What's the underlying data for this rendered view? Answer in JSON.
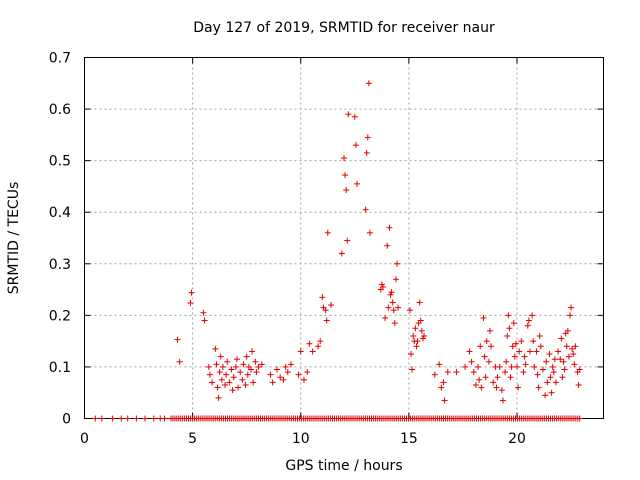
{
  "chart_data": {
    "type": "scatter",
    "title": "Day 127 of 2019, SRMTID for receiver naur",
    "xlabel": "GPS time / hours",
    "ylabel": "SRMTID / TECUs",
    "xlim": [
      0,
      24
    ],
    "ylim": [
      0,
      0.7
    ],
    "x_ticks": [
      0,
      5,
      10,
      15,
      20
    ],
    "y_ticks": [
      0,
      0.1,
      0.2,
      0.3,
      0.4,
      0.5,
      0.6,
      0.7
    ],
    "y_tick_labels": [
      "0",
      "0.1",
      "0.2",
      "0.3",
      "0.4",
      "0.5",
      "0.6",
      "0.7"
    ],
    "grid": true,
    "marker": "+",
    "series": [
      {
        "name": "SRMTID",
        "color": "#e00000",
        "points": [
          [
            0.5,
            0
          ],
          [
            0.8,
            0
          ],
          [
            1.3,
            0
          ],
          [
            1.7,
            0
          ],
          [
            2.0,
            0
          ],
          [
            2.4,
            0
          ],
          [
            2.8,
            0
          ],
          [
            3.2,
            0
          ],
          [
            3.5,
            0
          ],
          [
            3.7,
            0
          ],
          [
            4.3,
            0.153
          ],
          [
            4.4,
            0.11
          ],
          [
            4.9,
            0.224
          ],
          [
            4.95,
            0.244
          ],
          [
            5.5,
            0.205
          ],
          [
            5.55,
            0.19
          ],
          [
            5.75,
            0.1
          ],
          [
            5.8,
            0.085
          ],
          [
            5.9,
            0.07
          ],
          [
            6.05,
            0.135
          ],
          [
            6.1,
            0.105
          ],
          [
            6.15,
            0.06
          ],
          [
            6.2,
            0.04
          ],
          [
            6.25,
            0.09
          ],
          [
            6.3,
            0.12
          ],
          [
            6.35,
            0.075
          ],
          [
            6.4,
            0.1
          ],
          [
            6.5,
            0.065
          ],
          [
            6.55,
            0.085
          ],
          [
            6.6,
            0.11
          ],
          [
            6.7,
            0.07
          ],
          [
            6.8,
            0.095
          ],
          [
            6.85,
            0.055
          ],
          [
            6.9,
            0.08
          ],
          [
            7.0,
            0.1
          ],
          [
            7.05,
            0.115
          ],
          [
            7.1,
            0.06
          ],
          [
            7.2,
            0.09
          ],
          [
            7.3,
            0.075
          ],
          [
            7.35,
            0.105
          ],
          [
            7.45,
            0.065
          ],
          [
            7.5,
            0.12
          ],
          [
            7.55,
            0.085
          ],
          [
            7.6,
            0.1
          ],
          [
            7.7,
            0.095
          ],
          [
            7.75,
            0.13
          ],
          [
            7.8,
            0.07
          ],
          [
            7.9,
            0.11
          ],
          [
            7.95,
            0.09
          ],
          [
            8.05,
            0.1
          ],
          [
            8.2,
            0.105
          ],
          [
            8.6,
            0.085
          ],
          [
            8.7,
            0.07
          ],
          [
            8.9,
            0.095
          ],
          [
            9.05,
            0.08
          ],
          [
            9.2,
            0.075
          ],
          [
            9.3,
            0.1
          ],
          [
            9.4,
            0.09
          ],
          [
            9.55,
            0.105
          ],
          [
            9.9,
            0.085
          ],
          [
            10.0,
            0.13
          ],
          [
            10.15,
            0.075
          ],
          [
            10.3,
            0.09
          ],
          [
            10.4,
            0.145
          ],
          [
            10.55,
            0.13
          ],
          [
            10.8,
            0.14
          ],
          [
            10.9,
            0.15
          ],
          [
            11.0,
            0.235
          ],
          [
            11.05,
            0.215
          ],
          [
            11.15,
            0.21
          ],
          [
            11.2,
            0.19
          ],
          [
            11.25,
            0.36
          ],
          [
            11.4,
            0.22
          ],
          [
            11.9,
            0.32
          ],
          [
            12.0,
            0.505
          ],
          [
            12.05,
            0.472
          ],
          [
            12.1,
            0.443
          ],
          [
            12.15,
            0.345
          ],
          [
            12.2,
            0.59
          ],
          [
            12.5,
            0.585
          ],
          [
            12.55,
            0.53
          ],
          [
            12.6,
            0.455
          ],
          [
            13.0,
            0.405
          ],
          [
            13.05,
            0.515
          ],
          [
            13.1,
            0.545
          ],
          [
            13.15,
            0.65
          ],
          [
            13.2,
            0.36
          ],
          [
            13.7,
            0.25
          ],
          [
            13.75,
            0.26
          ],
          [
            13.8,
            0.255
          ],
          [
            13.9,
            0.195
          ],
          [
            14.0,
            0.335
          ],
          [
            14.05,
            0.215
          ],
          [
            14.1,
            0.37
          ],
          [
            14.15,
            0.24
          ],
          [
            14.2,
            0.245
          ],
          [
            14.25,
            0.225
          ],
          [
            14.3,
            0.21
          ],
          [
            14.35,
            0.185
          ],
          [
            14.4,
            0.27
          ],
          [
            14.45,
            0.3
          ],
          [
            14.5,
            0.215
          ],
          [
            15.05,
            0.21
          ],
          [
            15.1,
            0.125
          ],
          [
            15.15,
            0.095
          ],
          [
            15.2,
            0.16
          ],
          [
            15.25,
            0.15
          ],
          [
            15.3,
            0.175
          ],
          [
            15.35,
            0.14
          ],
          [
            15.4,
            0.15
          ],
          [
            15.45,
            0.185
          ],
          [
            15.5,
            0.225
          ],
          [
            15.55,
            0.19
          ],
          [
            15.6,
            0.17
          ],
          [
            15.65,
            0.155
          ],
          [
            15.7,
            0.16
          ],
          [
            16.2,
            0.085
          ],
          [
            16.4,
            0.105
          ],
          [
            16.5,
            0.06
          ],
          [
            16.6,
            0.07
          ],
          [
            16.65,
            0.035
          ],
          [
            16.8,
            0.09
          ],
          [
            17.2,
            0.09
          ],
          [
            17.6,
            0.1
          ],
          [
            17.8,
            0.13
          ],
          [
            17.9,
            0.11
          ],
          [
            18.0,
            0.09
          ],
          [
            18.1,
            0.065
          ],
          [
            18.2,
            0.1
          ],
          [
            18.25,
            0.075
          ],
          [
            18.3,
            0.14
          ],
          [
            18.35,
            0.06
          ],
          [
            18.45,
            0.195
          ],
          [
            18.5,
            0.12
          ],
          [
            18.55,
            0.08
          ],
          [
            18.6,
            0.15
          ],
          [
            18.7,
            0.11
          ],
          [
            18.75,
            0.17
          ],
          [
            18.8,
            0.14
          ],
          [
            18.9,
            0.07
          ],
          [
            19.0,
            0.1
          ],
          [
            19.05,
            0.06
          ],
          [
            19.1,
            0.08
          ],
          [
            19.2,
            0.1
          ],
          [
            19.3,
            0.055
          ],
          [
            19.35,
            0.035
          ],
          [
            19.45,
            0.09
          ],
          [
            19.5,
            0.11
          ],
          [
            19.55,
            0.16
          ],
          [
            19.6,
            0.2
          ],
          [
            19.65,
            0.175
          ],
          [
            19.7,
            0.08
          ],
          [
            19.75,
            0.1
          ],
          [
            19.8,
            0.14
          ],
          [
            19.85,
            0.185
          ],
          [
            19.9,
            0.12
          ],
          [
            19.95,
            0.145
          ],
          [
            20.0,
            0.1
          ],
          [
            20.05,
            0.06
          ],
          [
            20.1,
            0.13
          ],
          [
            20.2,
            0.15
          ],
          [
            20.3,
            0.09
          ],
          [
            20.35,
            0.12
          ],
          [
            20.4,
            0.105
          ],
          [
            20.5,
            0.18
          ],
          [
            20.55,
            0.19
          ],
          [
            20.6,
            0.13
          ],
          [
            20.7,
            0.2
          ],
          [
            20.75,
            0.15
          ],
          [
            20.8,
            0.1
          ],
          [
            20.9,
            0.13
          ],
          [
            20.95,
            0.085
          ],
          [
            21.0,
            0.06
          ],
          [
            21.05,
            0.16
          ],
          [
            21.1,
            0.14
          ],
          [
            21.2,
            0.095
          ],
          [
            21.3,
            0.045
          ],
          [
            21.35,
            0.11
          ],
          [
            21.4,
            0.07
          ],
          [
            21.5,
            0.125
          ],
          [
            21.55,
            0.08
          ],
          [
            21.6,
            0.05
          ],
          [
            21.65,
            0.1
          ],
          [
            21.7,
            0.09
          ],
          [
            21.75,
            0.115
          ],
          [
            21.8,
            0.07
          ],
          [
            21.9,
            0.13
          ],
          [
            22.0,
            0.115
          ],
          [
            22.05,
            0.155
          ],
          [
            22.1,
            0.08
          ],
          [
            22.15,
            0.11
          ],
          [
            22.2,
            0.095
          ],
          [
            22.25,
            0.165
          ],
          [
            22.3,
            0.14
          ],
          [
            22.35,
            0.17
          ],
          [
            22.4,
            0.12
          ],
          [
            22.45,
            0.2
          ],
          [
            22.5,
            0.215
          ],
          [
            22.55,
            0.135
          ],
          [
            22.6,
            0.125
          ],
          [
            22.65,
            0.105
          ],
          [
            22.7,
            0.14
          ],
          [
            22.8,
            0.09
          ],
          [
            22.85,
            0.065
          ],
          [
            22.9,
            0.095
          ]
        ],
        "zero_run": [
          4.0,
          22.9
        ]
      }
    ]
  }
}
